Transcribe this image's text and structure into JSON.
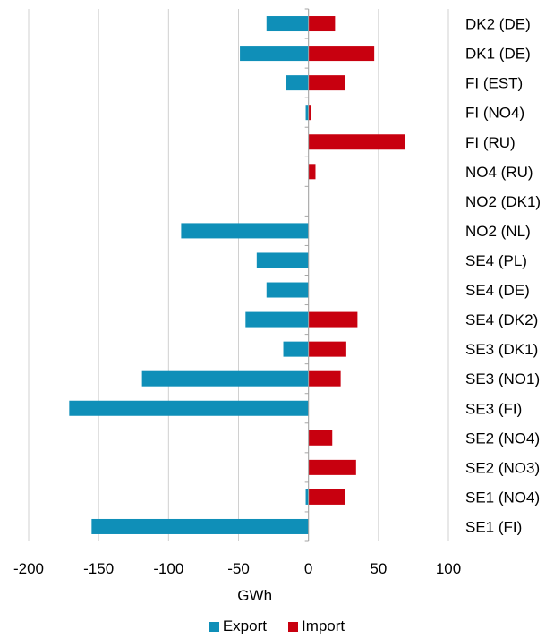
{
  "chart_data": {
    "type": "bar",
    "orientation": "horizontal",
    "categories": [
      "DK2 (DE)",
      "DK1 (DE)",
      "FI (EST)",
      "FI (NO4)",
      "FI (RU)",
      "NO4 (RU)",
      "NO2 (DK1)",
      "NO2 (NL)",
      "SE4 (PL)",
      "SE4 (DE)",
      "SE4 (DK2)",
      "SE3 (DK1)",
      "SE3 (NO1)",
      "SE3 (FI)",
      "SE2 (NO4)",
      "SE2 (NO3)",
      "SE1 (NO4)",
      "SE1 (FI)"
    ],
    "series": [
      {
        "name": "Export",
        "color": "#0f8fb8",
        "values": [
          -30,
          -49,
          -16,
          -2,
          0,
          0,
          0,
          -91,
          -37,
          -30,
          -45,
          -18,
          -119,
          -171,
          0,
          0,
          -2,
          -155
        ]
      },
      {
        "name": "Import",
        "color": "#c8000f",
        "values": [
          19,
          47,
          26,
          2,
          69,
          5,
          0,
          0,
          0,
          0,
          35,
          27,
          23,
          0,
          17,
          34,
          26,
          0
        ]
      }
    ],
    "xlabel": "GWh",
    "xlim": [
      -200,
      100
    ],
    "xticks": [
      -200,
      -150,
      -100,
      -50,
      0,
      50,
      100
    ],
    "grid": "vertical",
    "legend": "bottom"
  }
}
